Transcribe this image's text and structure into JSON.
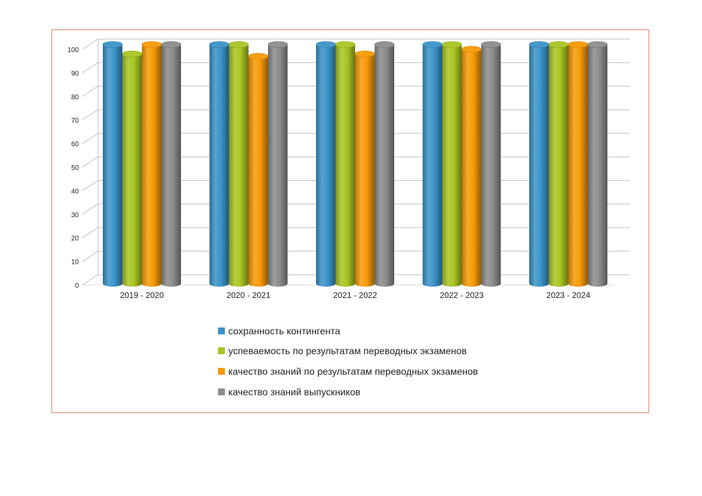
{
  "chart_data": {
    "type": "bar",
    "style": "3d-cylinder",
    "categories": [
      "2019 - 2020",
      "2020 - 2021",
      "2021 - 2022",
      "2022 - 2023",
      "2023 - 2024"
    ],
    "series": [
      {
        "name": "сохранность контингента",
        "color": "#3b93c9",
        "values": [
          100,
          100,
          100,
          100,
          100
        ]
      },
      {
        "name": "успеваемость по результатам переводных экзаменов",
        "color": "#a8c522",
        "values": [
          96,
          100,
          100,
          100,
          100
        ]
      },
      {
        "name": "качество знаний по результатам переводных экзаменов",
        "color": "#f79a06",
        "values": [
          100,
          95,
          96,
          98,
          100
        ]
      },
      {
        "name": "качество знаний выпускников",
        "color": "#8c8c8c",
        "values": [
          100,
          100,
          100,
          100,
          100
        ]
      }
    ],
    "y_ticks": [
      "0",
      "10",
      "20",
      "30",
      "40",
      "50",
      "60",
      "70",
      "80",
      "90",
      "100"
    ],
    "ylim": [
      0,
      100
    ],
    "grid": true,
    "legend_position": "bottom",
    "frame_color": "#d8886a"
  }
}
